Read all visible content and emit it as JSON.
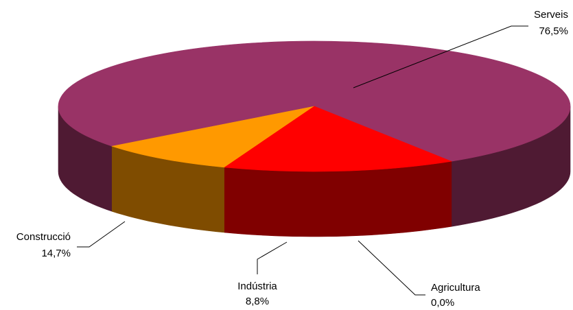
{
  "chart_data": {
    "type": "pie",
    "style": "3d",
    "title": "",
    "categories": [
      "Serveis",
      "Agricultura",
      "Indústria",
      "Construcció"
    ],
    "values": [
      76.5,
      0.0,
      8.8,
      14.7
    ],
    "value_labels": [
      "76,5%",
      "0,0%",
      "8,8%",
      "14,7%"
    ],
    "colors": {
      "top": [
        "#993366",
        "#FF9900",
        "#FF9900",
        "#FF0000"
      ],
      "side": [
        "#4F1A33",
        "#7F4C00",
        "#7F4C00",
        "#800000"
      ]
    },
    "legend": "none"
  }
}
